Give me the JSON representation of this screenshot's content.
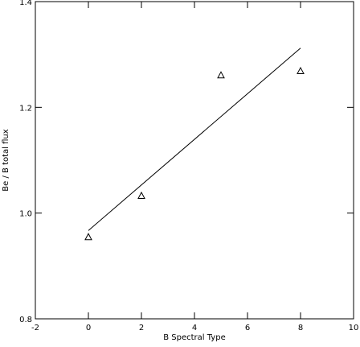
{
  "chart_data": {
    "type": "scatter",
    "xlabel": "B Spectral Type",
    "ylabel": "Be / B total flux",
    "xlim": [
      -2,
      10
    ],
    "xticks": [
      -2,
      0,
      2,
      4,
      6,
      8,
      10
    ],
    "ylim": [
      0.8,
      1.4
    ],
    "yticks": [
      0.8,
      {
        "value": 1.0,
        "label": "1.0"
      },
      1.2,
      1.4
    ],
    "series": [
      {
        "type": "scatter",
        "marker": "triangle",
        "color": "#000000",
        "x": [
          0,
          2,
          5,
          8
        ],
        "values": [
          0.955,
          1.033,
          1.261,
          1.269
        ]
      },
      {
        "type": "line",
        "color": "#000000",
        "x": [
          0,
          8
        ],
        "values": [
          0.967,
          1.312
        ]
      }
    ]
  }
}
